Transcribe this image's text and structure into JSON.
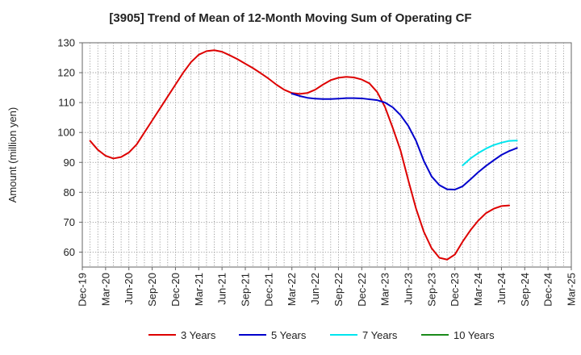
{
  "chart_data": {
    "type": "line",
    "title": "[3905]  Trend of Mean of 12-Month Moving Sum of Operating CF",
    "xlabel": "",
    "ylabel": "Amount (million yen)",
    "ylim": [
      55,
      130
    ],
    "yticks": [
      60,
      70,
      80,
      90,
      100,
      110,
      120,
      130
    ],
    "grid": true,
    "legend_position": "bottom",
    "x_tick_labels": [
      "Dec-19",
      "Mar-20",
      "Jun-20",
      "Sep-20",
      "Dec-20",
      "Mar-21",
      "Jun-21",
      "Sep-21",
      "Dec-21",
      "Mar-22",
      "Jun-22",
      "Sep-22",
      "Dec-22",
      "Mar-23",
      "Jun-23",
      "Sep-23",
      "Dec-23",
      "Mar-24",
      "Jun-24",
      "Sep-24",
      "Dec-24",
      "Mar-25"
    ],
    "series": [
      {
        "name": "3 Years",
        "color": "#dd0000",
        "points": [
          [
            1,
            97.2
          ],
          [
            2,
            94.2
          ],
          [
            3,
            92.2
          ],
          [
            4,
            91.3
          ],
          [
            5,
            91.8
          ],
          [
            6,
            93.3
          ],
          [
            7,
            96.0
          ],
          [
            8,
            100.0
          ],
          [
            9,
            104.0
          ],
          [
            10,
            108.0
          ],
          [
            11,
            112.0
          ],
          [
            12,
            116.0
          ],
          [
            13,
            120.0
          ],
          [
            14,
            123.5
          ],
          [
            15,
            126.0
          ],
          [
            16,
            127.2
          ],
          [
            17,
            127.5
          ],
          [
            18,
            127.0
          ],
          [
            19,
            125.8
          ],
          [
            20,
            124.5
          ],
          [
            21,
            123.0
          ],
          [
            22,
            121.5
          ],
          [
            23,
            119.8
          ],
          [
            24,
            118.0
          ],
          [
            25,
            116.0
          ],
          [
            26,
            114.3
          ],
          [
            27,
            113.2
          ],
          [
            28,
            112.9
          ],
          [
            29,
            113.2
          ],
          [
            30,
            114.3
          ],
          [
            31,
            116.0
          ],
          [
            32,
            117.5
          ],
          [
            33,
            118.3
          ],
          [
            34,
            118.6
          ],
          [
            35,
            118.4
          ],
          [
            36,
            117.7
          ],
          [
            37,
            116.4
          ],
          [
            38,
            113.5
          ],
          [
            39,
            108.5
          ],
          [
            40,
            101.5
          ],
          [
            41,
            94.0
          ],
          [
            42,
            84.0
          ],
          [
            43,
            74.5
          ],
          [
            44,
            66.8
          ],
          [
            45,
            61.3
          ],
          [
            46,
            58.1
          ],
          [
            47,
            57.5
          ],
          [
            48,
            59.2
          ],
          [
            49,
            63.5
          ],
          [
            50,
            67.3
          ],
          [
            51,
            70.5
          ],
          [
            52,
            73.0
          ],
          [
            53,
            74.5
          ],
          [
            54,
            75.4
          ],
          [
            55,
            75.6
          ]
        ]
      },
      {
        "name": "5 Years",
        "color": "#0000cc",
        "points": [
          [
            27,
            113.0
          ],
          [
            28,
            112.2
          ],
          [
            29,
            111.6
          ],
          [
            30,
            111.3
          ],
          [
            31,
            111.2
          ],
          [
            32,
            111.2
          ],
          [
            33,
            111.3
          ],
          [
            34,
            111.5
          ],
          [
            35,
            111.5
          ],
          [
            36,
            111.4
          ],
          [
            37,
            111.1
          ],
          [
            38,
            110.8
          ],
          [
            39,
            110.0
          ],
          [
            40,
            108.4
          ],
          [
            41,
            105.8
          ],
          [
            42,
            102.2
          ],
          [
            43,
            97.2
          ],
          [
            44,
            90.5
          ],
          [
            45,
            85.3
          ],
          [
            46,
            82.4
          ],
          [
            47,
            81.0
          ],
          [
            48,
            80.9
          ],
          [
            49,
            82.0
          ],
          [
            50,
            84.3
          ],
          [
            51,
            86.7
          ],
          [
            52,
            88.8
          ],
          [
            53,
            90.7
          ],
          [
            54,
            92.5
          ],
          [
            55,
            93.8
          ],
          [
            56,
            94.8
          ]
        ]
      },
      {
        "name": "7 Years",
        "color": "#00e5ee",
        "points": [
          [
            49,
            89.0
          ],
          [
            50,
            91.3
          ],
          [
            51,
            93.1
          ],
          [
            52,
            94.6
          ],
          [
            53,
            95.8
          ],
          [
            54,
            96.6
          ],
          [
            55,
            97.2
          ],
          [
            56,
            97.3
          ]
        ]
      },
      {
        "name": "10 Years",
        "color": "#1a8a1a",
        "points": []
      }
    ]
  }
}
